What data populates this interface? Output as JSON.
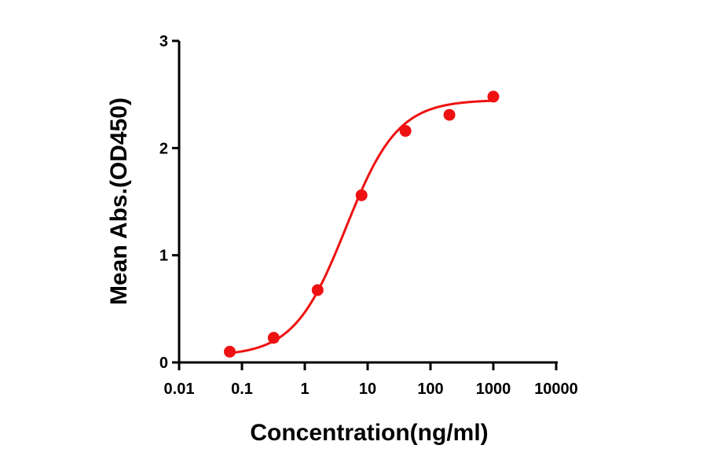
{
  "chart_data": {
    "type": "scatter",
    "title": "",
    "xlabel": "Concentration(ng/ml)",
    "ylabel": "Mean Abs.(OD450)",
    "xscale": "log",
    "xlim": [
      0.01,
      10000
    ],
    "ylim": [
      0,
      3
    ],
    "x_ticks": [
      "0.01",
      "0.1",
      "1",
      "10",
      "100",
      "1000",
      "10000"
    ],
    "y_ticks": [
      "0",
      "1",
      "2",
      "3"
    ],
    "grid": false,
    "legend": null,
    "series": [
      {
        "name": "Mean Abs.(OD450)",
        "color": "#ee1111",
        "marker": "circle",
        "x": [
          0.064,
          0.32,
          1.6,
          8,
          40,
          200,
          1000
        ],
        "y": [
          0.1,
          0.23,
          0.675,
          1.56,
          2.16,
          2.31,
          2.48
        ]
      }
    ],
    "fit_curve": {
      "model": "4PL",
      "color": "#ee1111",
      "bottom": 0.06,
      "top": 2.45,
      "ec50": 4.5,
      "hill": 1.05,
      "x_range": [
        0.064,
        1000
      ]
    }
  }
}
